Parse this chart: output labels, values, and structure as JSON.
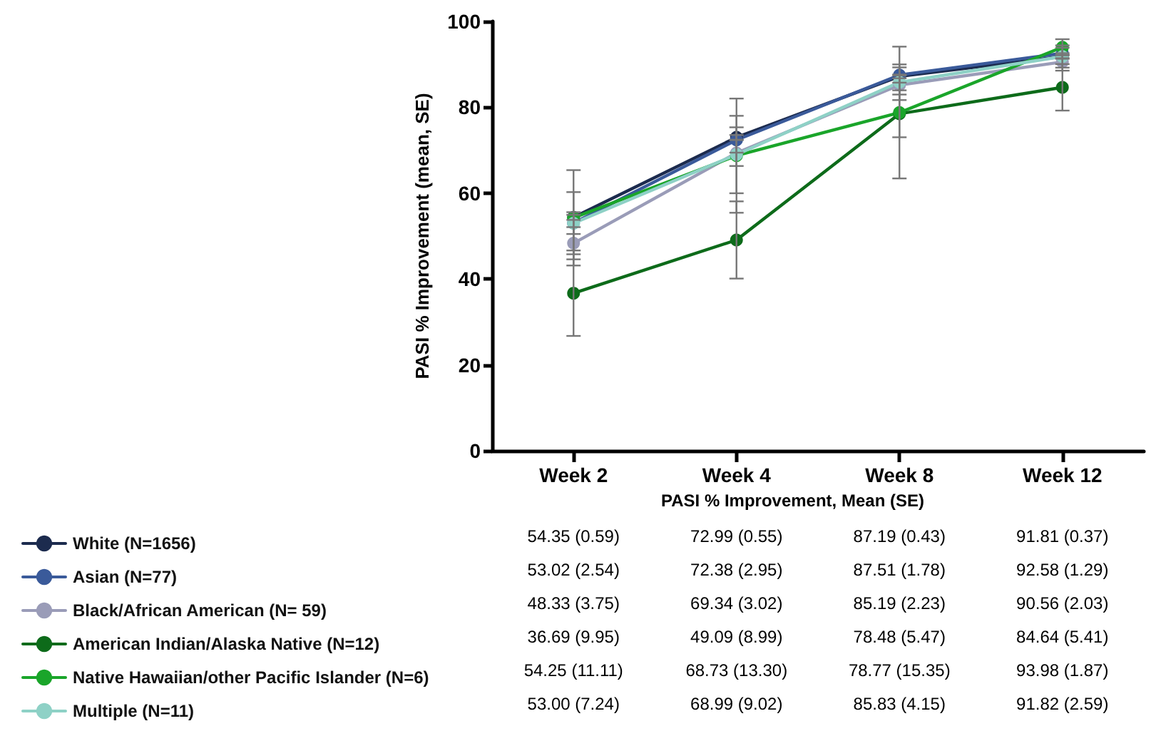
{
  "chart_data": {
    "type": "line",
    "ylabel": "PASI % Improvement (mean, SE)",
    "categories": [
      "Week 2",
      "Week 4",
      "Week 8",
      "Week 12"
    ],
    "ylim": [
      0,
      100
    ],
    "yticks": [
      0,
      20,
      40,
      60,
      80,
      100
    ],
    "annotations": [
      "PASI % Improvement, Mean (SE)"
    ],
    "series": [
      {
        "name": "White (N=1656)",
        "color": "#1c2b4e",
        "values": [
          54.35,
          72.99,
          87.19,
          91.81
        ],
        "errors": [
          0.59,
          0.55,
          0.43,
          0.37
        ],
        "value_labels": [
          "54.35 (0.59)",
          "72.99 (0.55)",
          "87.19 (0.43)",
          "91.81 (0.37)"
        ]
      },
      {
        "name": "Asian (N=77)",
        "color": "#3a5a9a",
        "values": [
          53.02,
          72.38,
          87.51,
          92.58
        ],
        "errors": [
          2.54,
          2.95,
          1.78,
          1.29
        ],
        "value_labels": [
          "53.02 (2.54)",
          "72.38 (2.95)",
          "87.51 (1.78)",
          "92.58 (1.29)"
        ]
      },
      {
        "name": "Black/African American (N= 59)",
        "color": "#9a9cb8",
        "values": [
          48.33,
          69.34,
          85.19,
          90.56
        ],
        "errors": [
          3.75,
          3.02,
          2.23,
          2.03
        ],
        "value_labels": [
          "48.33 (3.75)",
          "69.34 (3.02)",
          "85.19 (2.23)",
          "90.56 (2.03)"
        ]
      },
      {
        "name": "American Indian/Alaska Native (N=12)",
        "color": "#0d6b1a",
        "values": [
          36.69,
          49.09,
          78.48,
          84.64
        ],
        "errors": [
          9.95,
          8.99,
          5.47,
          5.41
        ],
        "value_labels": [
          "36.69 (9.95)",
          "49.09 (8.99)",
          "78.48 (5.47)",
          "84.64 (5.41)"
        ]
      },
      {
        "name": "Native Hawaiian/other Pacific Islander (N=6)",
        "color": "#1aa52a",
        "values": [
          54.25,
          68.73,
          78.77,
          93.98
        ],
        "errors": [
          11.11,
          13.3,
          15.35,
          1.87
        ],
        "value_labels": [
          "54.25 (11.11)",
          "68.73 (13.30)",
          "78.77 (15.35)",
          "93.98 (1.87)"
        ]
      },
      {
        "name": "Multiple (N=11)",
        "color": "#8ed1c6",
        "values": [
          53.0,
          68.99,
          85.83,
          91.82
        ],
        "errors": [
          7.24,
          9.02,
          4.15,
          2.59
        ],
        "value_labels": [
          "53.00 (7.24)",
          "68.99 (9.02)",
          "85.83 (4.15)",
          "91.82 (2.59)"
        ]
      }
    ],
    "marker": "circle",
    "line_style": "solid",
    "grid": false,
    "legend": "bottom left"
  }
}
